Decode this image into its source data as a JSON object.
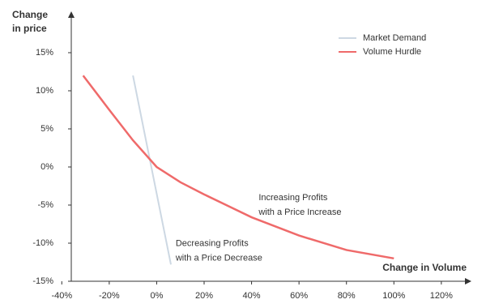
{
  "chart_data": {
    "type": "line",
    "y_label": [
      "Change",
      "in price"
    ],
    "x_label": "Change in Volume",
    "xlim": [
      -36,
      132
    ],
    "ylim": [
      -15,
      20
    ],
    "xticks": [
      {
        "value": -40,
        "label": "-40%"
      },
      {
        "value": -20,
        "label": "-20%"
      },
      {
        "value": 0,
        "label": "0%"
      },
      {
        "value": 20,
        "label": "20%"
      },
      {
        "value": 40,
        "label": "40%"
      },
      {
        "value": 60,
        "label": "60%"
      },
      {
        "value": 80,
        "label": "80%"
      },
      {
        "value": 100,
        "label": "100%"
      },
      {
        "value": 120,
        "label": "120%"
      }
    ],
    "yticks": [
      {
        "value": -15,
        "label": "-15%"
      },
      {
        "value": -10,
        "label": "-10%"
      },
      {
        "value": -5,
        "label": "-5%"
      },
      {
        "value": 0,
        "label": "0%"
      },
      {
        "value": 5,
        "label": "5%"
      },
      {
        "value": 10,
        "label": "10%"
      },
      {
        "value": 15,
        "label": "15%"
      }
    ],
    "series": [
      {
        "name": "Market Demand",
        "color": "#cdd8e3",
        "x": [
          -10,
          6
        ],
        "values": [
          12,
          -12.8
        ]
      },
      {
        "name": "Volume Hurdle",
        "color": "#ef6a6a",
        "x": [
          -31,
          -20,
          -10,
          0,
          10,
          20,
          40,
          60,
          80,
          100
        ],
        "values": [
          12,
          7.5,
          3.5,
          0,
          -2,
          -3.6,
          -6.6,
          -9,
          -10.9,
          -12
        ]
      }
    ],
    "annotations": [
      {
        "lines": [
          "Increasing Profits",
          "with a Price Increase"
        ],
        "x": 43,
        "y": -5
      },
      {
        "lines": [
          "Decreasing Profits",
          "with a Price Decrease"
        ],
        "x": 8,
        "y": -11
      }
    ],
    "legend": "top-right"
  }
}
